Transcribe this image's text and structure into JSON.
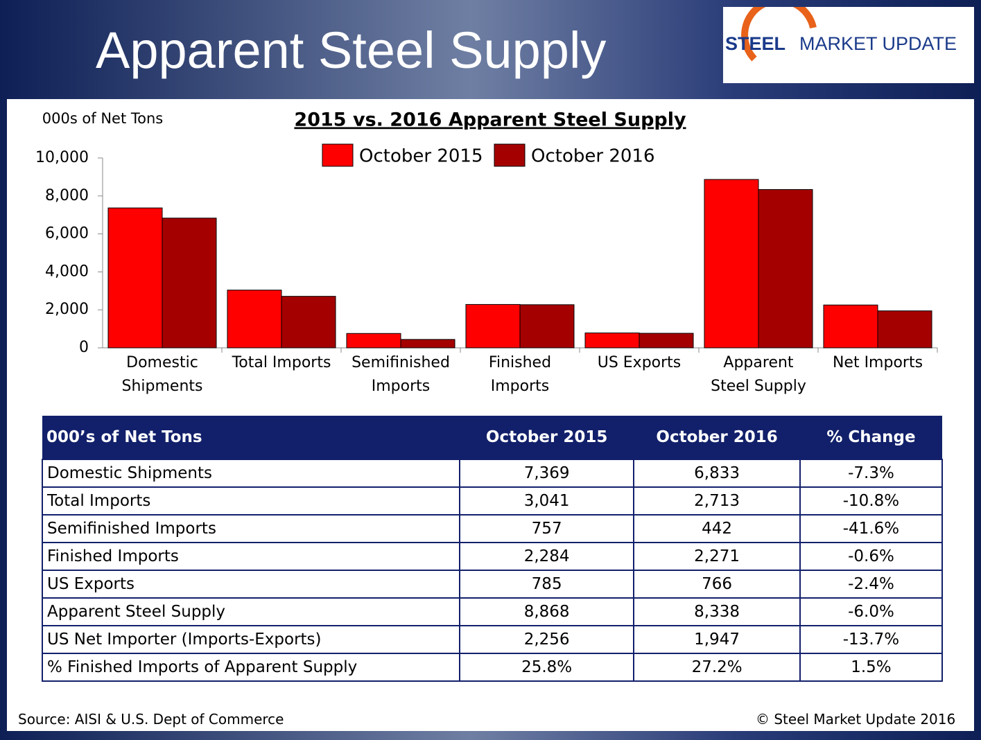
{
  "header": {
    "title": "Apparent Steel Supply",
    "logo": {
      "word1": "STEEL",
      "word2": "MARKET UPDATE"
    }
  },
  "chart_data": {
    "type": "bar",
    "title": "2015 vs. 2016 Apparent Steel Supply",
    "y_label": "000s of Net Tons",
    "categories": [
      "Domestic Shipments",
      "Total Imports",
      "Semifinished Imports",
      "Finished Imports",
      "US Exports",
      "Apparent Steel Supply",
      "Net Imports"
    ],
    "series": [
      {
        "name": "October 2015",
        "color": "#ff0000",
        "values": [
          7369,
          3041,
          757,
          2284,
          785,
          8868,
          2256
        ]
      },
      {
        "name": "October 2016",
        "color": "#a50000",
        "values": [
          6833,
          2713,
          442,
          2271,
          766,
          8338,
          1947
        ]
      }
    ],
    "ylim": [
      0,
      10000
    ],
    "yticks": [
      0,
      {
        "value": 2000,
        "label": "2,000"
      },
      {
        "value": 4000,
        "label": "4,000"
      },
      {
        "value": 6000,
        "label": "6,000"
      },
      {
        "value": 8000,
        "label": "8,000"
      },
      {
        "value": 10000,
        "label": "10,000"
      }
    ],
    "grid": false,
    "legend": "top"
  },
  "table": {
    "header": [
      "000’s of Net Tons",
      "October 2015",
      "October 2016",
      "% Change"
    ],
    "rows": [
      [
        "Domestic Shipments",
        "7,369",
        "6,833",
        "-7.3%"
      ],
      [
        "Total Imports",
        "3,041",
        "2,713",
        "-10.8%"
      ],
      [
        "Semifinished Imports",
        "757",
        "442",
        "-41.6%"
      ],
      [
        "Finished Imports",
        "2,284",
        "2,271",
        "-0.6%"
      ],
      [
        "US Exports",
        "785",
        "766",
        "-2.4%"
      ],
      [
        "Apparent Steel Supply",
        "8,868",
        "8,338",
        "-6.0%"
      ],
      [
        "US Net Importer (Imports-Exports)",
        "2,256",
        "1,947",
        "-13.7%"
      ],
      [
        "% Finished Imports of Apparent Supply",
        "25.8%",
        "27.2%",
        "1.5%"
      ]
    ]
  },
  "footer": {
    "source": "Source:  AISI & U.S. Dept of Commerce",
    "copyright": "©   Steel Market Update 2016"
  }
}
